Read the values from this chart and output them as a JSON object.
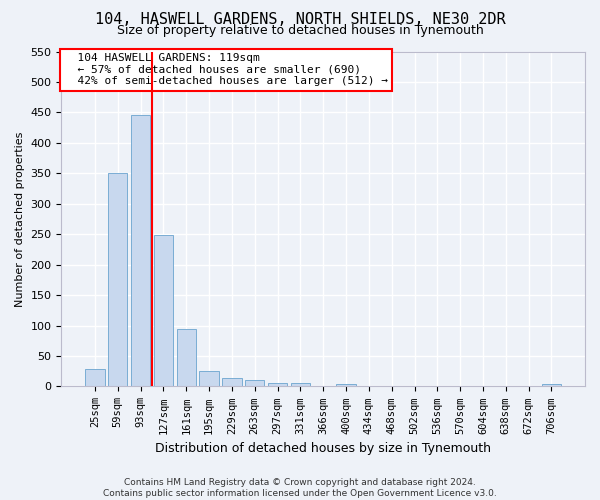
{
  "title": "104, HASWELL GARDENS, NORTH SHIELDS, NE30 2DR",
  "subtitle": "Size of property relative to detached houses in Tynemouth",
  "xlabel": "Distribution of detached houses by size in Tynemouth",
  "ylabel": "Number of detached properties",
  "footer_line1": "Contains HM Land Registry data © Crown copyright and database right 2024.",
  "footer_line2": "Contains public sector information licensed under the Open Government Licence v3.0.",
  "bar_labels": [
    "25sqm",
    "59sqm",
    "93sqm",
    "127sqm",
    "161sqm",
    "195sqm",
    "229sqm",
    "263sqm",
    "297sqm",
    "331sqm",
    "366sqm",
    "400sqm",
    "434sqm",
    "468sqm",
    "502sqm",
    "536sqm",
    "570sqm",
    "604sqm",
    "638sqm",
    "672sqm",
    "706sqm"
  ],
  "bar_values": [
    28,
    350,
    445,
    248,
    95,
    25,
    14,
    11,
    6,
    5,
    0,
    4,
    0,
    0,
    0,
    0,
    0,
    0,
    0,
    0,
    4
  ],
  "bar_color": "#c8d8ee",
  "bar_edge_color": "#7aadd4",
  "ylim": [
    0,
    550
  ],
  "yticks": [
    0,
    50,
    100,
    150,
    200,
    250,
    300,
    350,
    400,
    450,
    500,
    550
  ],
  "annotation_text": "  104 HASWELL GARDENS: 119sqm\n  ← 57% of detached houses are smaller (690)\n  42% of semi-detached houses are larger (512) →",
  "annotation_box_color": "white",
  "annotation_box_edge_color": "red",
  "vline_color": "red",
  "vline_x": 2.5,
  "background_color": "#eef2f8",
  "grid_color": "white",
  "title_fontsize": 11,
  "subtitle_fontsize": 9,
  "ylabel_fontsize": 8,
  "xlabel_fontsize": 9,
  "tick_fontsize": 8,
  "xtick_fontsize": 7.5,
  "footer_fontsize": 6.5,
  "annot_fontsize": 8
}
